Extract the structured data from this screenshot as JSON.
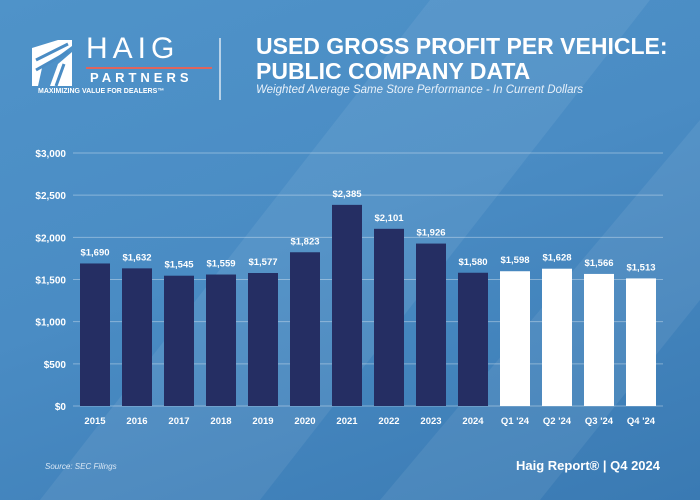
{
  "brand": {
    "name": "HAIG",
    "subname": "PARTNERS",
    "tagline": "MAXIMIZING VALUE FOR DEALERS™"
  },
  "header": {
    "title_line1": "USED GROSS PROFIT PER VEHICLE:",
    "title_line2": "PUBLIC COMPANY DATA",
    "subtitle": "Weighted Average Same Store Performance - In Current Dollars"
  },
  "footer": {
    "source": "Source: SEC Filings",
    "report": "Haig Report® | Q4 2024"
  },
  "colors": {
    "annual_bar": "#252e63",
    "quarterly_bar": "#ffffff",
    "background": "#4a8cc4"
  },
  "chart_data": {
    "type": "bar",
    "title": "USED GROSS PROFIT PER VEHICLE: PUBLIC COMPANY DATA",
    "subtitle": "Weighted Average Same Store Performance - In Current Dollars",
    "xlabel": "",
    "ylabel": "",
    "ylim": [
      0,
      3000
    ],
    "yticks": [
      0,
      500,
      1000,
      1500,
      2000,
      2500,
      3000
    ],
    "ytick_labels": [
      "$0",
      "$500",
      "$1,000",
      "$1,500",
      "$2,000",
      "$2,500",
      "$3,000"
    ],
    "grid": true,
    "categories": [
      "2015",
      "2016",
      "2017",
      "2018",
      "2019",
      "2020",
      "2021",
      "2022",
      "2023",
      "2024",
      "Q1 '24",
      "Q2 '24",
      "Q3 '24",
      "Q4 '24"
    ],
    "values": [
      1690,
      1632,
      1545,
      1559,
      1577,
      1823,
      2385,
      2101,
      1926,
      1580,
      1598,
      1628,
      1566,
      1513
    ],
    "data_labels": [
      "$1,690",
      "$1,632",
      "$1,545",
      "$1,559",
      "$1,577",
      "$1,823",
      "$2,385",
      "$2,101",
      "$1,926",
      "$1,580",
      "$1,598",
      "$1,628",
      "$1,566",
      "$1,513"
    ],
    "bar_groups": [
      "annual",
      "annual",
      "annual",
      "annual",
      "annual",
      "annual",
      "annual",
      "annual",
      "annual",
      "annual",
      "quarterly",
      "quarterly",
      "quarterly",
      "quarterly"
    ]
  }
}
